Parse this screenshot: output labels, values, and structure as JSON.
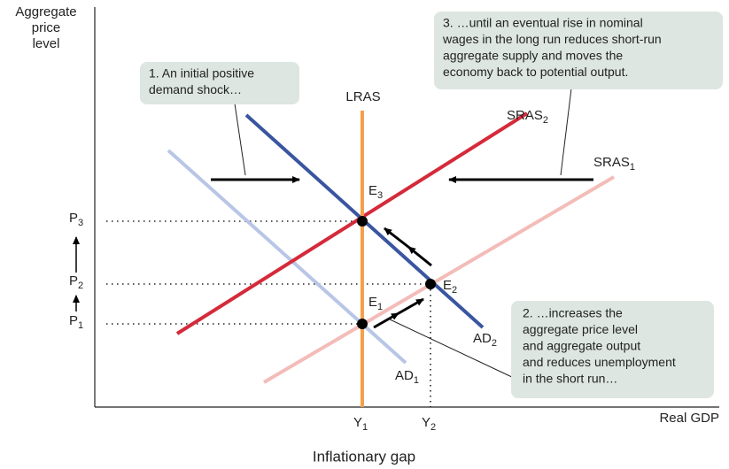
{
  "axes": {
    "y_title": [
      "Aggregate",
      "price",
      "level"
    ],
    "x_title": "Real GDP",
    "y_labels": [
      {
        "text": "P",
        "sub": "3"
      },
      {
        "text": "P",
        "sub": "2"
      },
      {
        "text": "P",
        "sub": "1"
      }
    ],
    "x_labels": [
      {
        "text": "Y",
        "sub": "1"
      },
      {
        "text": "Y",
        "sub": "2"
      }
    ]
  },
  "curves": {
    "lras": {
      "text": "LRAS"
    },
    "sras1": {
      "text": "SRAS",
      "sub": "1"
    },
    "sras2": {
      "text": "SRAS",
      "sub": "2"
    },
    "ad1": {
      "text": "AD",
      "sub": "1"
    },
    "ad2": {
      "text": "AD",
      "sub": "2"
    }
  },
  "points": [
    {
      "text": "E",
      "sub": "3"
    },
    {
      "text": "E",
      "sub": "2"
    },
    {
      "text": "E",
      "sub": "1"
    }
  ],
  "callouts": [
    [
      "1. An initial positive",
      "demand shock…"
    ],
    [
      "2. …increases the",
      "aggregate price level",
      "and aggregate output",
      "and reduces unemployment",
      "in the short run…"
    ],
    [
      "3. …until an eventual rise in nominal",
      "wages in the long run reduces short-run",
      "aggregate supply and moves the",
      "economy back to potential output."
    ]
  ],
  "caption": "Inflationary gap"
}
